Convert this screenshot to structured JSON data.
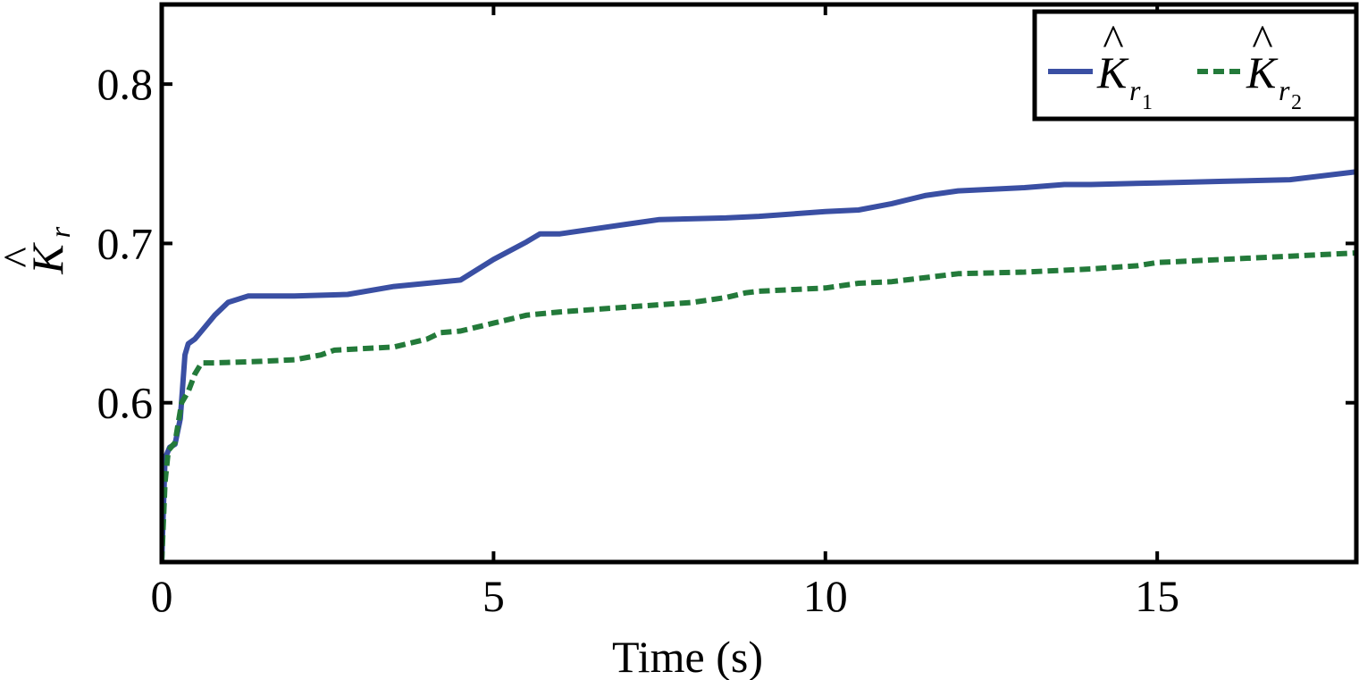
{
  "chart_data": {
    "type": "line",
    "title": "",
    "xlabel": "Time (s)",
    "ylabel": {
      "base": "K",
      "hat": "^",
      "sub": "r"
    },
    "xlim": [
      0,
      18
    ],
    "ylim": [
      0.5,
      0.85
    ],
    "xticks": [
      0,
      5,
      10,
      15
    ],
    "xtick_labels": [
      "0",
      "5",
      "10",
      "15"
    ],
    "yticks": [
      0.6,
      0.7,
      0.8
    ],
    "ytick_labels": [
      "0.6",
      "0.7",
      "0.8"
    ],
    "grid": false,
    "legend_position": "top-right",
    "series": [
      {
        "name": {
          "base": "K",
          "hat": "^",
          "sub": "r",
          "subsub": "1"
        },
        "color": "#3a4fa3",
        "style": "solid",
        "x": [
          0,
          0.05,
          0.12,
          0.2,
          0.28,
          0.35,
          0.4,
          0.5,
          0.6,
          0.8,
          1.0,
          1.3,
          2.0,
          2.8,
          3.5,
          4.0,
          4.5,
          5.0,
          5.5,
          5.7,
          6.0,
          7.0,
          7.5,
          8.5,
          9.0,
          10.0,
          10.5,
          11.0,
          11.5,
          12.0,
          13.0,
          13.6,
          14.0,
          15.0,
          16.0,
          17.0,
          18.0
        ],
        "y": [
          0.5,
          0.565,
          0.572,
          0.574,
          0.59,
          0.63,
          0.637,
          0.64,
          0.645,
          0.655,
          0.663,
          0.667,
          0.667,
          0.668,
          0.673,
          0.675,
          0.677,
          0.69,
          0.701,
          0.706,
          0.706,
          0.712,
          0.715,
          0.716,
          0.717,
          0.72,
          0.721,
          0.725,
          0.73,
          0.733,
          0.735,
          0.737,
          0.737,
          0.738,
          0.739,
          0.74,
          0.745
        ]
      },
      {
        "name": {
          "base": "K",
          "hat": "^",
          "sub": "r",
          "subsub": "2"
        },
        "color": "#237a3a",
        "style": "dashed",
        "x": [
          0,
          0.05,
          0.1,
          0.2,
          0.3,
          0.4,
          0.5,
          0.6,
          0.8,
          1.5,
          2.0,
          2.4,
          2.6,
          3.5,
          4.0,
          4.2,
          4.5,
          5.0,
          5.5,
          6.0,
          7.0,
          8.0,
          8.5,
          8.8,
          9.0,
          10.0,
          10.5,
          11.0,
          12.0,
          13.0,
          14.0,
          14.7,
          15.0,
          16.0,
          17.0,
          18.0
        ],
        "y": [
          0.5,
          0.55,
          0.57,
          0.575,
          0.6,
          0.607,
          0.618,
          0.625,
          0.625,
          0.626,
          0.627,
          0.63,
          0.633,
          0.635,
          0.64,
          0.644,
          0.645,
          0.65,
          0.655,
          0.657,
          0.66,
          0.663,
          0.666,
          0.669,
          0.67,
          0.672,
          0.675,
          0.676,
          0.681,
          0.682,
          0.684,
          0.686,
          0.688,
          0.69,
          0.692,
          0.694
        ]
      }
    ]
  }
}
